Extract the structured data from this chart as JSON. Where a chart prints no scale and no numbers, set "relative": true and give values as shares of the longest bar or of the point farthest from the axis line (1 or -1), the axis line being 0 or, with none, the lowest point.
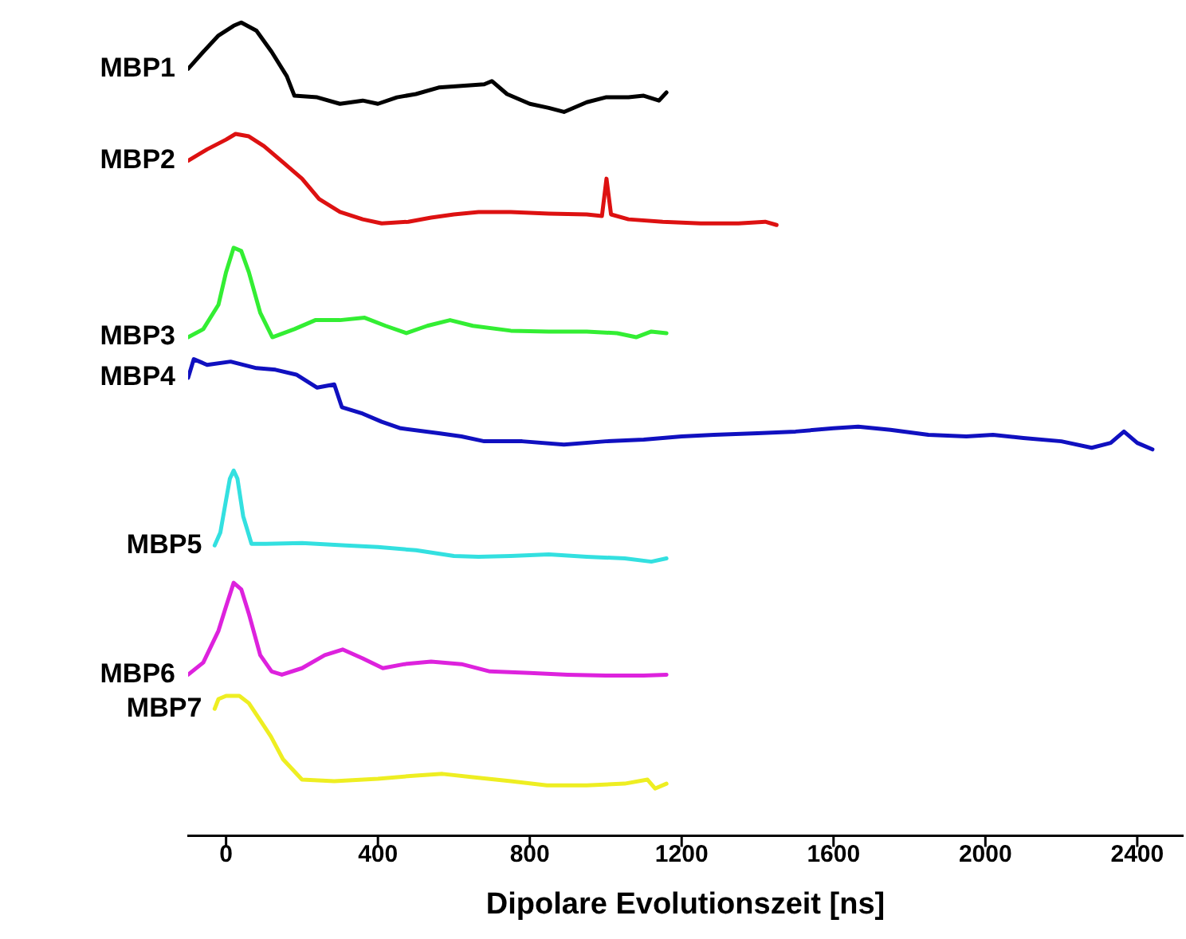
{
  "chart_data": {
    "type": "line",
    "relative": true,
    "xlabel": "Dipolare Evolutionszeit [ns]",
    "xlim": [
      -100,
      2520
    ],
    "xticks": [
      0,
      400,
      800,
      1200,
      1600,
      2000,
      2400
    ],
    "grid": false,
    "legend": false,
    "marker": "none",
    "line_style": "solid",
    "series": [
      {
        "name": "MBP1",
        "color": "#000000",
        "x": [
          -100,
          -60,
          -20,
          20,
          40,
          80,
          120,
          160,
          180,
          240,
          300,
          360,
          400,
          450,
          500,
          560,
          620,
          680,
          700,
          740,
          800,
          850,
          890,
          950,
          1000,
          1060,
          1100,
          1140,
          1160
        ],
        "values": [
          0.943,
          0.964,
          0.984,
          0.996,
          1.0,
          0.99,
          0.964,
          0.934,
          0.91,
          0.908,
          0.9,
          0.904,
          0.9,
          0.908,
          0.912,
          0.92,
          0.922,
          0.924,
          0.928,
          0.912,
          0.9,
          0.895,
          0.89,
          0.902,
          0.908,
          0.908,
          0.91,
          0.904,
          0.914
        ]
      },
      {
        "name": "MBP2",
        "color": "#dd1111",
        "x": [
          -100,
          -50,
          0,
          25,
          60,
          100,
          150,
          200,
          245,
          300,
          360,
          410,
          480,
          540,
          600,
          665,
          750,
          850,
          950,
          990,
          1002,
          1014,
          1060,
          1150,
          1250,
          1350,
          1420,
          1450
        ],
        "values": [
          0.83,
          0.844,
          0.856,
          0.863,
          0.86,
          0.848,
          0.828,
          0.808,
          0.783,
          0.767,
          0.758,
          0.753,
          0.755,
          0.76,
          0.764,
          0.767,
          0.767,
          0.765,
          0.764,
          0.762,
          0.808,
          0.764,
          0.758,
          0.755,
          0.753,
          0.753,
          0.755,
          0.751
        ]
      },
      {
        "name": "MBP3",
        "color": "#33ee33",
        "x": [
          -100,
          -60,
          -20,
          0,
          20,
          40,
          60,
          90,
          122,
          180,
          235,
          300,
          365,
          420,
          475,
          530,
          590,
          650,
          750,
          850,
          950,
          1030,
          1080,
          1120,
          1160
        ],
        "values": [
          0.613,
          0.623,
          0.653,
          0.693,
          0.723,
          0.719,
          0.693,
          0.643,
          0.613,
          0.623,
          0.634,
          0.634,
          0.637,
          0.627,
          0.618,
          0.627,
          0.634,
          0.627,
          0.621,
          0.62,
          0.62,
          0.618,
          0.613,
          0.62,
          0.618
        ]
      },
      {
        "name": "MBP4",
        "color": "#1010c0",
        "x": [
          -100,
          -85,
          -50,
          12,
          80,
          130,
          185,
          240,
          285,
          305,
          360,
          410,
          460,
          560,
          620,
          680,
          780,
          890,
          1000,
          1100,
          1200,
          1285,
          1400,
          1500,
          1600,
          1665,
          1750,
          1850,
          1950,
          2020,
          2100,
          2200,
          2280,
          2330,
          2365,
          2400,
          2440
        ],
        "values": [
          0.563,
          0.586,
          0.579,
          0.583,
          0.575,
          0.573,
          0.567,
          0.551,
          0.555,
          0.527,
          0.519,
          0.509,
          0.501,
          0.495,
          0.491,
          0.485,
          0.485,
          0.481,
          0.485,
          0.487,
          0.491,
          0.493,
          0.495,
          0.497,
          0.501,
          0.503,
          0.499,
          0.493,
          0.491,
          0.493,
          0.489,
          0.485,
          0.477,
          0.483,
          0.497,
          0.483,
          0.475
        ]
      },
      {
        "name": "MBP5",
        "color": "#33e0e0",
        "x": [
          -30,
          -15,
          0,
          10,
          20,
          30,
          45,
          67,
          105,
          200,
          315,
          400,
          500,
          600,
          665,
          750,
          850,
          950,
          1050,
          1120,
          1160
        ],
        "values": [
          0.357,
          0.373,
          0.413,
          0.439,
          0.449,
          0.439,
          0.393,
          0.359,
          0.359,
          0.36,
          0.357,
          0.355,
          0.351,
          0.344,
          0.343,
          0.344,
          0.346,
          0.343,
          0.341,
          0.337,
          0.341
        ]
      },
      {
        "name": "MBP6",
        "color": "#dd22dd",
        "x": [
          -100,
          -60,
          -20,
          0,
          20,
          40,
          60,
          90,
          120,
          147,
          200,
          260,
          307,
          360,
          413,
          470,
          540,
          620,
          695,
          800,
          900,
          1000,
          1100,
          1160
        ],
        "values": [
          0.198,
          0.213,
          0.252,
          0.282,
          0.311,
          0.303,
          0.273,
          0.222,
          0.202,
          0.198,
          0.206,
          0.222,
          0.229,
          0.218,
          0.206,
          0.211,
          0.214,
          0.211,
          0.202,
          0.2,
          0.198,
          0.197,
          0.197,
          0.198
        ]
      },
      {
        "name": "MBP7",
        "color": "#eeee22",
        "x": [
          -30,
          -20,
          0,
          35,
          60,
          90,
          118,
          150,
          200,
          285,
          400,
          500,
          570,
          650,
          750,
          845,
          950,
          1050,
          1110,
          1130,
          1160
        ],
        "values": [
          0.156,
          0.168,
          0.172,
          0.172,
          0.163,
          0.142,
          0.122,
          0.094,
          0.069,
          0.067,
          0.07,
          0.074,
          0.076,
          0.072,
          0.067,
          0.062,
          0.062,
          0.064,
          0.069,
          0.058,
          0.064
        ]
      }
    ]
  }
}
